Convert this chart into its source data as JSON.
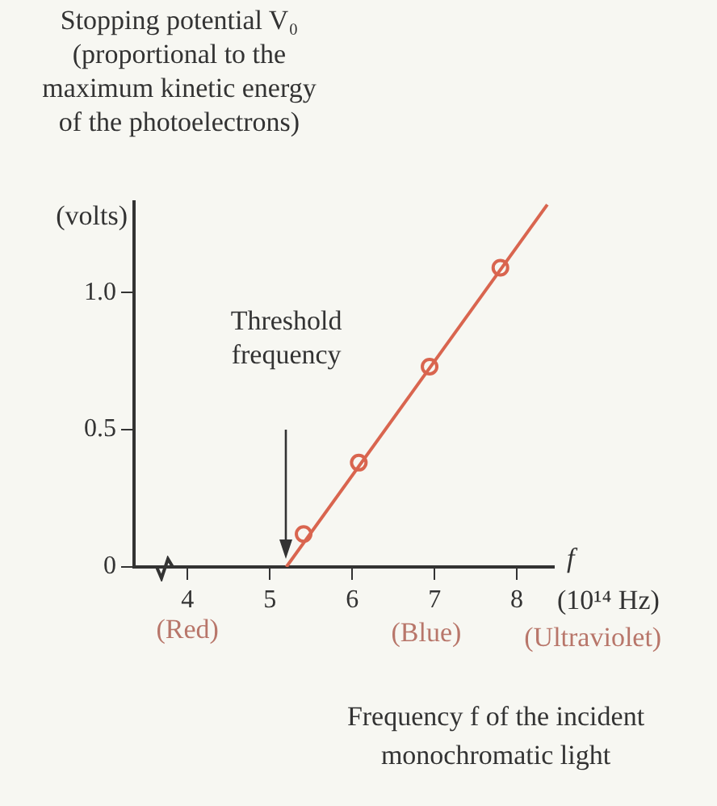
{
  "chart_data": {
    "type": "line",
    "title": "Stopping potential V₀\n(proportional to the\nmaximum kinetic energy\nof the photoelectrons)",
    "ylabel": "(volts)",
    "xlabel": "Frequency f of the incident\nmonochromatic light",
    "series": [
      {
        "color": "#d9654f",
        "x": [
          5.2,
          8.37
        ],
        "values": [
          0,
          1.32
        ],
        "marker": "none"
      },
      {
        "type": "scatter",
        "color": "#d9654f",
        "x": [
          5.41,
          6.08,
          6.94,
          7.8
        ],
        "values": [
          0.12,
          0.38,
          0.73,
          1.09
        ],
        "marker": "circle"
      }
    ],
    "xlim": [
      3.35,
      8.45
    ],
    "xticks": [
      4,
      5,
      6,
      7,
      8
    ],
    "ylim": [
      0,
      1.33
    ],
    "yticks": [
      0,
      0.5,
      {
        "value": 1,
        "label": "1.0"
      }
    ],
    "annotations": [
      "Threshold\nfrequency",
      "f",
      "(10¹⁴ Hz)",
      "(Red)",
      "(Blue)",
      "(Ultraviolet)"
    ],
    "grid": false,
    "legend": false
  }
}
